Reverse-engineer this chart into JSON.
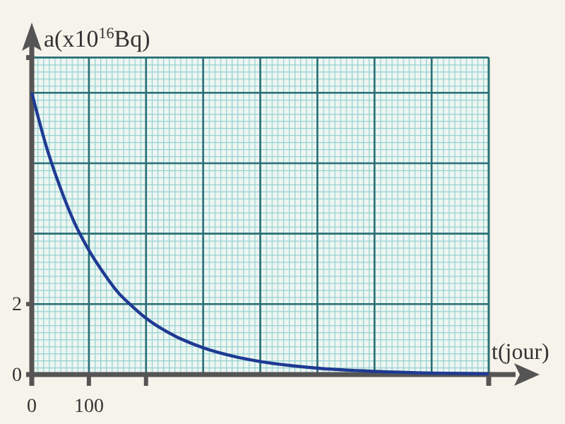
{
  "chart_data": {
    "type": "line",
    "xlabel": "t(jour)",
    "ylabel": "a(x10$^{16}$Bq)",
    "x": [
      0,
      25,
      50,
      75,
      100,
      125,
      150,
      175,
      200,
      250,
      300,
      350,
      400,
      450,
      500,
      600,
      700,
      800
    ],
    "series": [
      {
        "color": "#1f3a93",
        "values": [
          8,
          6.5,
          5.3,
          4.3,
          3.53,
          2.9,
          2.35,
          1.95,
          1.6,
          1.1,
          0.76,
          0.53,
          0.37,
          0.26,
          0.18,
          0.09,
          0.04,
          0.02
        ]
      }
    ],
    "xlim": [
      0,
      800
    ],
    "ylim": [
      0,
      9
    ],
    "xticks": [
      0,
      100,
      {
        "value": 200,
        "label": null
      }
    ],
    "yticks": [
      0,
      2
    ],
    "grid": true,
    "marker": "none",
    "line_style": "solid"
  }
}
